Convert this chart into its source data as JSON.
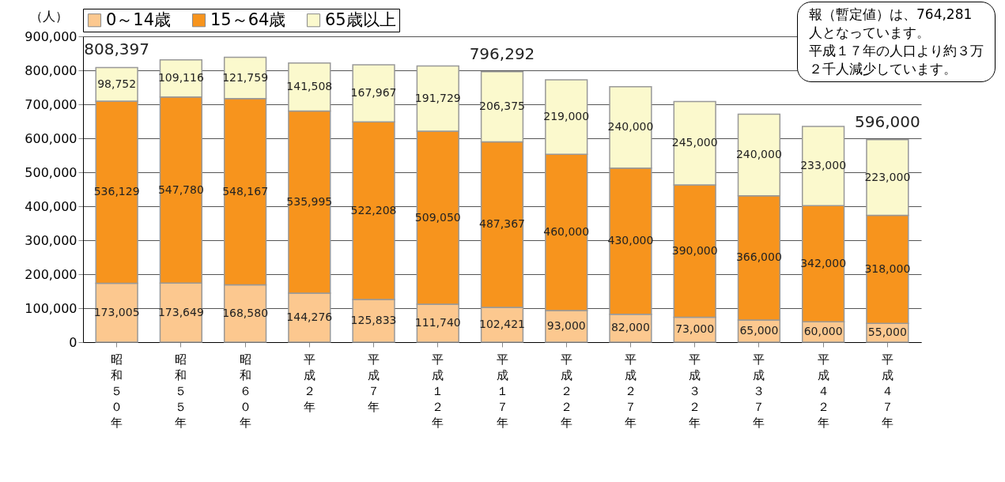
{
  "chart_data": {
    "type": "bar",
    "stacked": true,
    "ylabel": "（人）",
    "categories": [
      "昭和５０年",
      "昭和５５年",
      "昭和６０年",
      "平成２年",
      "平成７年",
      "平成１２年",
      "平成１７年",
      "平成２２年",
      "平成２７年",
      "平成３２年",
      "平成３７年",
      "平成４２年",
      "平成４７年"
    ],
    "series": [
      {
        "name": "0～14歳",
        "color": "#fcc88f",
        "values": [
          173005,
          173649,
          168580,
          144276,
          125833,
          111740,
          102421,
          93000,
          82000,
          73000,
          65000,
          60000,
          55000
        ],
        "value_labels": [
          "173,005",
          "173,649",
          "168,580",
          "144,276",
          "125,833",
          "111,740",
          "102,421",
          "93,000",
          "82,000",
          "73,000",
          "65,000",
          "60,000",
          "55,000"
        ]
      },
      {
        "name": "15～64歳",
        "color": "#f7941d",
        "values": [
          536129,
          547780,
          548167,
          535995,
          522208,
          509050,
          487367,
          460000,
          430000,
          390000,
          366000,
          342000,
          318000
        ],
        "value_labels": [
          "536,129",
          "547,780",
          "548,167",
          "535,995",
          "522,208",
          "509,050",
          "487,367",
          "460,000",
          "430,000",
          "390,000",
          "366,000",
          "342,000",
          "318,000"
        ]
      },
      {
        "name": "65歳以上",
        "color": "#fbf9cd",
        "values": [
          98752,
          109116,
          121759,
          141508,
          167967,
          191729,
          206375,
          219000,
          240000,
          245000,
          240000,
          233000,
          223000
        ],
        "value_labels": [
          "98,752",
          "109,116",
          "121,759",
          "141,508",
          "167,967",
          "191,729",
          "206,375",
          "219,000",
          "240,000",
          "245,000",
          "240,000",
          "233,000",
          "223,000"
        ]
      }
    ],
    "ylim": [
      0,
      900000
    ],
    "yticks": [
      0,
      {
        "value": 100000,
        "label": "100,000"
      },
      {
        "value": 200000,
        "label": "200,000"
      },
      {
        "value": 300000,
        "label": "300,000"
      },
      {
        "value": 400000,
        "label": "400,000"
      },
      {
        "value": 500000,
        "label": "500,000"
      },
      {
        "value": 600000,
        "label": "600,000"
      },
      {
        "value": 700000,
        "label": "700,000"
      },
      {
        "value": 800000,
        "label": "800,000"
      },
      {
        "value": 900000,
        "label": "900,000"
      }
    ],
    "grid": "y",
    "legend": "top",
    "annotations": [
      {
        "text": "808,397",
        "x": "昭和５０年",
        "y": 808397
      },
      {
        "text": "796,292",
        "x": "平成１７年",
        "y": 796292
      },
      {
        "text": "596,000",
        "x": "平成４７年",
        "y": 596000
      },
      "報（暫定値）は、764,281",
      "人となっています。",
      "平成１７年の人口より約３万",
      "２千人減少しています。"
    ]
  }
}
